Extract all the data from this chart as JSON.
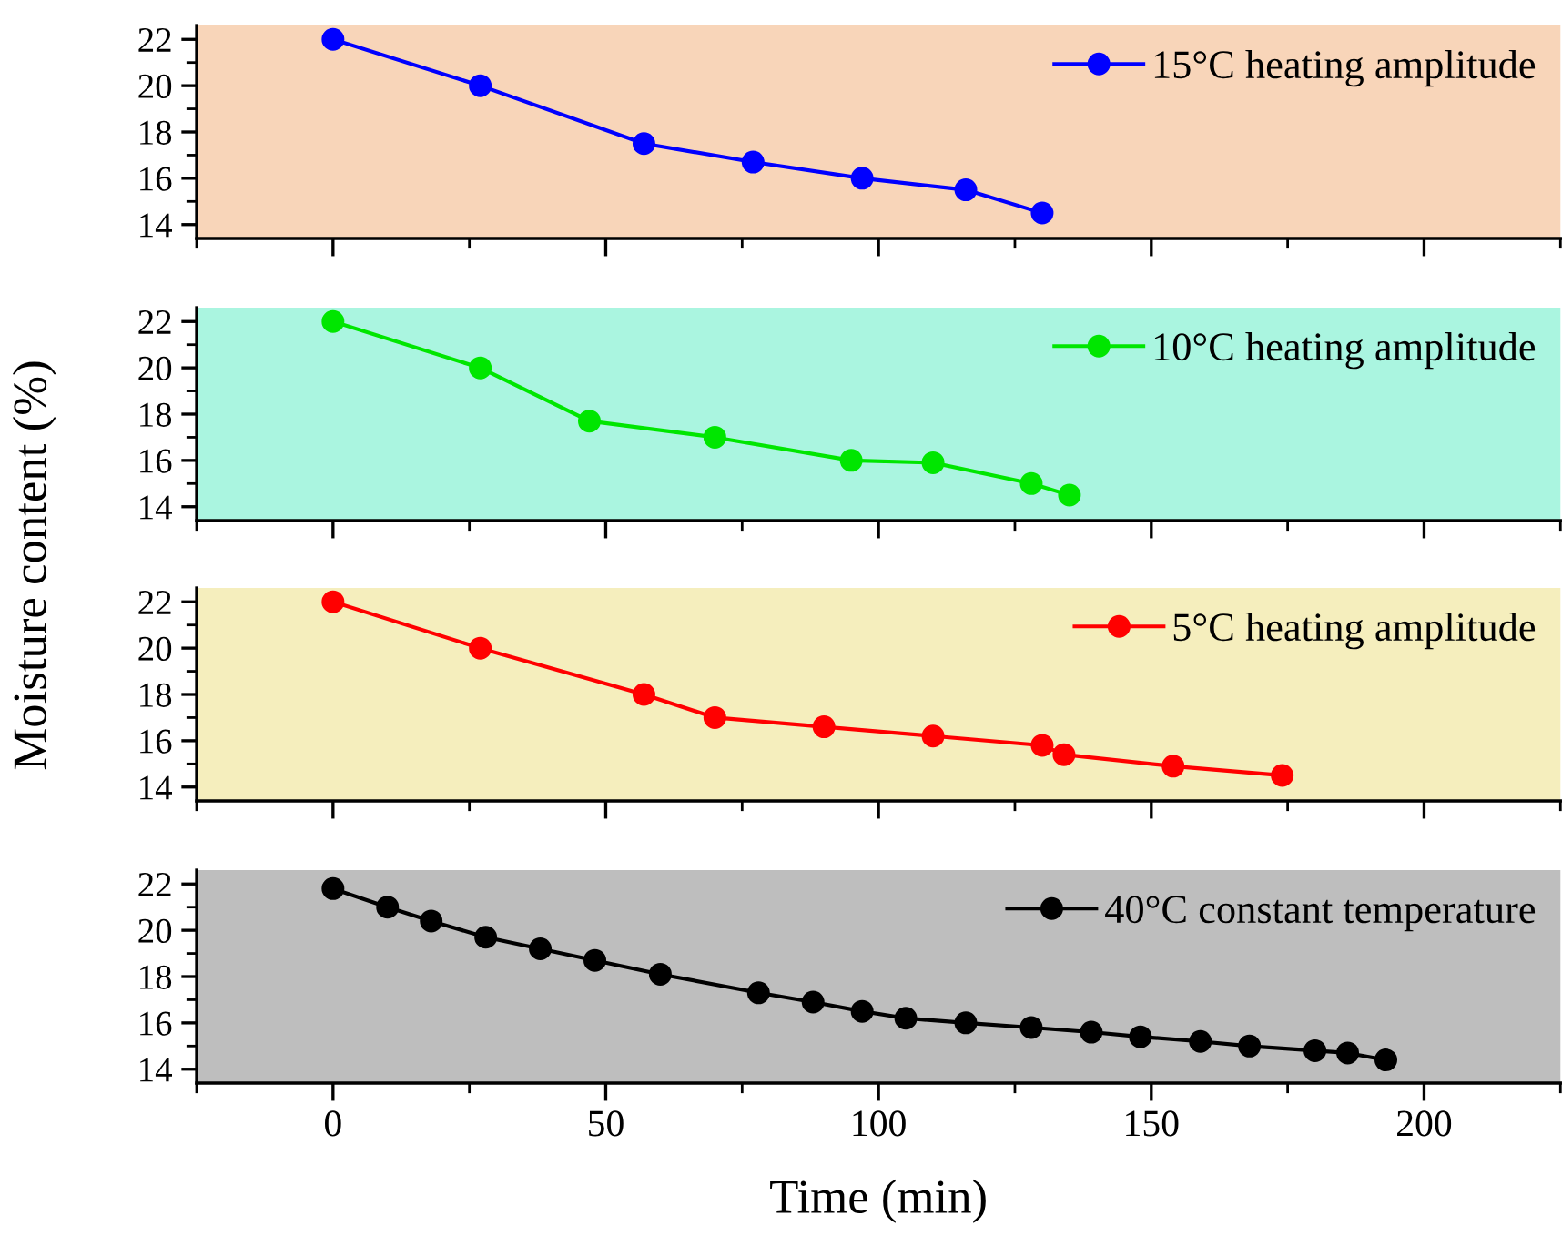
{
  "chart_data": [
    {
      "type": "line",
      "ylabel": "Moisture content (%)",
      "xlim": [
        -25,
        225
      ],
      "ylim": [
        13.4,
        22.6
      ],
      "yticks": [
        14,
        16,
        18,
        20,
        22
      ],
      "tick_labels": "y",
      "grid": false,
      "legend": "top right",
      "marker": "circle",
      "line_style": "solid",
      "series": [
        {
          "name": "15°C heating amplitude",
          "color": "#0000ff",
          "x": [
            0,
            27,
            57,
            77,
            97,
            116,
            130
          ],
          "values": [
            22,
            20,
            17.5,
            16.7,
            16,
            15.5,
            14.5
          ]
        }
      ]
    },
    {
      "type": "line",
      "xlim": [
        -25,
        225
      ],
      "ylim": [
        13.4,
        22.6
      ],
      "yticks": [
        14,
        16,
        18,
        20,
        22
      ],
      "tick_labels": "y",
      "grid": false,
      "legend": "top right",
      "marker": "circle",
      "line_style": "solid",
      "series": [
        {
          "name": "10°C heating amplitude",
          "color": "#00e600",
          "x": [
            0,
            27,
            47,
            70,
            95,
            110,
            128,
            135
          ],
          "values": [
            22,
            20,
            17.7,
            17,
            16,
            15.9,
            15,
            14.5
          ]
        }
      ]
    },
    {
      "type": "line",
      "xlim": [
        -25,
        225
      ],
      "ylim": [
        13.4,
        22.6
      ],
      "yticks": [
        14,
        16,
        18,
        20,
        22
      ],
      "tick_labels": "y",
      "grid": false,
      "legend": "top right",
      "marker": "circle",
      "line_style": "solid",
      "series": [
        {
          "name": "5°C heating amplitude",
          "color": "#ff0000",
          "x": [
            0,
            27,
            57,
            70,
            90,
            110,
            130,
            134,
            154,
            174
          ],
          "values": [
            22,
            20,
            18,
            17,
            16.6,
            16.2,
            15.8,
            15.4,
            14.9,
            14.5
          ]
        }
      ]
    },
    {
      "type": "line",
      "xlabel": "Time (min)",
      "xlim": [
        -25,
        225
      ],
      "xticks": [
        0,
        50,
        100,
        150,
        200
      ],
      "ylim": [
        13.4,
        22.6
      ],
      "yticks": [
        14,
        16,
        18,
        20,
        22
      ],
      "grid": false,
      "legend": "top right",
      "marker": "circle",
      "line_style": "solid",
      "series": [
        {
          "name": "40°C constant temperature",
          "color": "#000000",
          "x": [
            0,
            10,
            18,
            28,
            38,
            48,
            60,
            78,
            88,
            97,
            105,
            116,
            128,
            139,
            148,
            159,
            168,
            180,
            186,
            193
          ],
          "values": [
            21.8,
            21.0,
            20.4,
            19.7,
            19.2,
            18.7,
            18.1,
            17.3,
            16.9,
            16.5,
            16.2,
            16.0,
            15.8,
            15.6,
            15.4,
            15.2,
            15.0,
            14.8,
            14.7,
            14.4
          ]
        }
      ]
    }
  ]
}
